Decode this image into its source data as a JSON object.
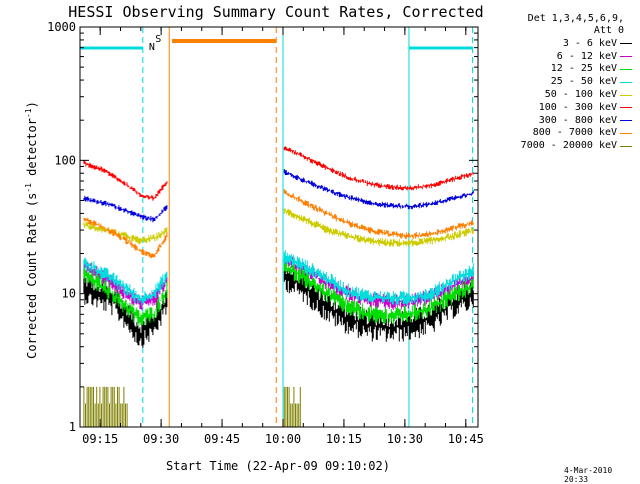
{
  "chart_data": {
    "type": "line",
    "title": "HESSI Observing Summary Count Rates, Corrected",
    "xlabel": "Start Time (22-Apr-09 09:10:02)",
    "ylabel_main": "Corrected Count Rate (s",
    "ylabel_sup1": "-1",
    "ylabel_mid": " detector",
    "ylabel_sup2": "-1",
    "ylabel_end": ")",
    "y_scale": "log",
    "ylim": [
      1,
      1000
    ],
    "xlim": [
      "09:10:02",
      "10:48:00"
    ],
    "x_tick_labels": [
      "09:15",
      "09:30",
      "09:45",
      "10:00",
      "10:15",
      "10:30",
      "10:45"
    ],
    "y_tick_labels": [
      "1",
      "10",
      "100",
      "1000"
    ],
    "legend": {
      "header_line1": "Det 1,3,4,5,6,9,",
      "header_line2": "Att 0",
      "placement": "right"
    },
    "series": [
      {
        "name": "3 - 6 keV",
        "color": "#000000",
        "seg1": [
          11,
          10,
          9,
          7,
          5,
          6,
          9
        ],
        "seg2": [
          14,
          11,
          8,
          6.5,
          5.8,
          5.6,
          5.8,
          6.5,
          8.5,
          10
        ]
      },
      {
        "name": "6 - 12 keV",
        "color": "#cc00cc",
        "seg1": [
          16,
          14,
          12,
          10,
          8.5,
          9,
          13
        ],
        "seg2": [
          18,
          15,
          12,
          10,
          9,
          8.6,
          8.8,
          9.5,
          11.5,
          13
        ]
      },
      {
        "name": "12 - 25 keV",
        "color": "#00dd00",
        "seg1": [
          14,
          12,
          10,
          8,
          6.5,
          7,
          11
        ],
        "seg2": [
          16,
          13,
          10,
          8,
          7,
          6.8,
          7,
          7.8,
          9.8,
          11.5
        ]
      },
      {
        "name": "25 - 50 keV",
        "color": "#00dddd",
        "seg1": [
          17,
          15,
          13,
          11,
          9,
          10,
          14
        ],
        "seg2": [
          19,
          16,
          13,
          10.5,
          9.5,
          9.2,
          9.3,
          10,
          12.5,
          15
        ]
      },
      {
        "name": "50 - 100 keV",
        "color": "#cccc00",
        "seg1": [
          33,
          31,
          29,
          27,
          25,
          26,
          30
        ],
        "seg2": [
          42,
          36,
          30,
          27,
          25,
          24,
          24,
          25,
          27,
          30
        ]
      },
      {
        "name": "100 - 300 keV",
        "color": "#ff0000",
        "seg1": [
          95,
          88,
          78,
          66,
          55,
          52,
          70
        ],
        "seg2": [
          125,
          105,
          88,
          75,
          67,
          63,
          62,
          65,
          72,
          80
        ]
      },
      {
        "name": "300 - 800 keV",
        "color": "#0000dd",
        "seg1": [
          52,
          49,
          46,
          42,
          38,
          36,
          45
        ],
        "seg2": [
          82,
          70,
          60,
          53,
          48,
          46,
          45,
          47,
          52,
          57
        ]
      },
      {
        "name": "800 - 7000 keV",
        "color": "#ff7f00",
        "seg1": [
          36,
          33,
          29,
          25,
          21,
          19,
          28
        ],
        "seg2": [
          58,
          48,
          40,
          34,
          30,
          28,
          27,
          28,
          31,
          34
        ]
      },
      {
        "name": "7000 - 20000 keV",
        "color": "#808000",
        "seg1": [],
        "seg2": []
      }
    ],
    "annotations": [
      {
        "text": "N",
        "color": "#00cccc"
      },
      {
        "text": "S",
        "color": "#ff7f00"
      }
    ],
    "time_stamp": "4-Mar-2010 20:33"
  }
}
